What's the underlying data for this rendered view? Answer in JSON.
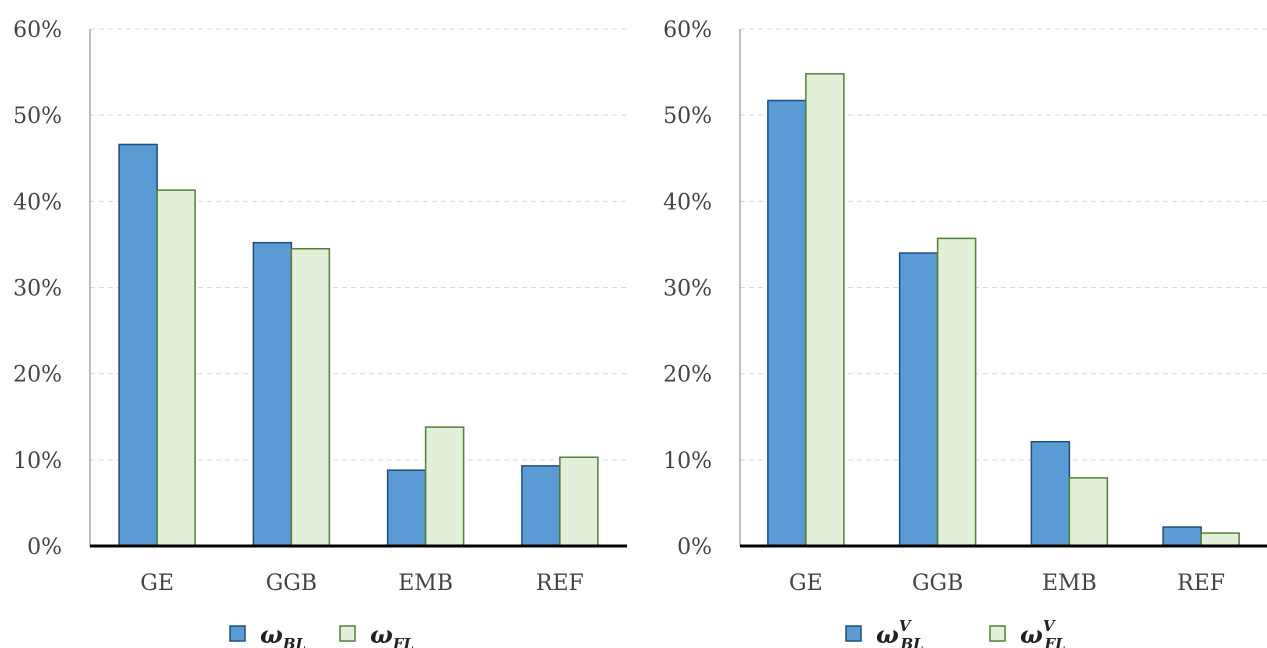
{
  "chart_data": [
    {
      "type": "bar",
      "categories": [
        "GE",
        "GGB",
        "EMB",
        "REF"
      ],
      "series": [
        {
          "name": "ω_BL",
          "label_main": "ω",
          "label_sub": "BL",
          "label_sup": "",
          "values": [
            46.6,
            35.2,
            8.8,
            9.3
          ],
          "fill": "#5b9bd5",
          "stroke": "#1f4e79"
        },
        {
          "name": "ω_FL",
          "label_main": "ω",
          "label_sub": "FL",
          "label_sup": "",
          "values": [
            41.3,
            34.5,
            13.8,
            10.3
          ],
          "fill": "#e2efd9",
          "stroke": "#538135"
        }
      ],
      "ylim": [
        0,
        60
      ],
      "yticks": [
        "0%",
        "10%",
        "20%",
        "30%",
        "40%",
        "50%",
        "60%"
      ],
      "grid": true,
      "legend": "bottom"
    },
    {
      "type": "bar",
      "categories": [
        "GE",
        "GGB",
        "EMB",
        "REF"
      ],
      "series": [
        {
          "name": "ω^V_BL",
          "label_main": "ω",
          "label_sub": "BL",
          "label_sup": "V",
          "values": [
            51.7,
            34.0,
            12.1,
            2.2
          ],
          "fill": "#5b9bd5",
          "stroke": "#1f4e79"
        },
        {
          "name": "ω^V_FL",
          "label_main": "ω",
          "label_sub": "FL",
          "label_sup": "V",
          "values": [
            54.8,
            35.7,
            7.9,
            1.5
          ],
          "fill": "#e2efd9",
          "stroke": "#538135"
        }
      ],
      "ylim": [
        0,
        60
      ],
      "yticks": [
        "0%",
        "10%",
        "20%",
        "30%",
        "40%",
        "50%",
        "60%"
      ],
      "grid": true,
      "legend": "bottom"
    }
  ]
}
